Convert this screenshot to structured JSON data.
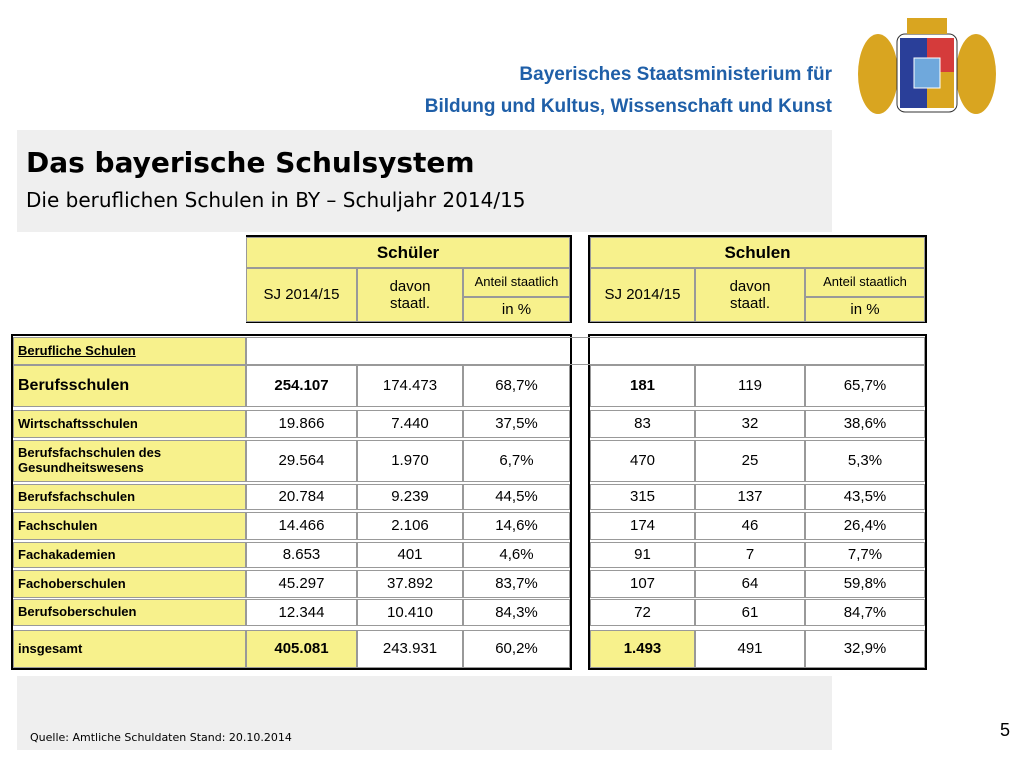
{
  "header": {
    "ministry_line1": "Bayerisches Staatsministerium für",
    "ministry_line2": "Bildung und Kultus, Wissenschaft und Kunst",
    "title": "Das bayerische Schulsystem",
    "subtitle": "Die beruflichen Schulen in BY – Schuljahr 2014/15"
  },
  "table": {
    "groups": [
      {
        "title": "Schüler",
        "year": "SJ 2014/15",
        "state": "davon staatl.",
        "share": "Anteil staatlich",
        "unit": "in %"
      },
      {
        "title": "Schulen",
        "year": "SJ 2014/15",
        "state": "davon staatl.",
        "share": "Anteil staatlich",
        "unit": "in %"
      }
    ],
    "section": "Berufliche Schulen",
    "rows": [
      [
        "Berufsschulen",
        "254.107",
        "174.473",
        "68,7%",
        "181",
        "119",
        "65,7%"
      ],
      [
        "Wirtschaftsschulen",
        "19.866",
        "7.440",
        "37,5%",
        "83",
        "32",
        "38,6%"
      ],
      [
        "Berufsfachschulen des Gesundheitswesens",
        "29.564",
        "1.970",
        "6,7%",
        "470",
        "25",
        "5,3%"
      ],
      [
        "Berufsfachschulen",
        "20.784",
        "9.239",
        "44,5%",
        "315",
        "137",
        "43,5%"
      ],
      [
        "Fachschulen",
        "14.466",
        "2.106",
        "14,6%",
        "174",
        "46",
        "26,4%"
      ],
      [
        "Fachakademien",
        "8.653",
        "401",
        "4,6%",
        "91",
        "7",
        "7,7%"
      ],
      [
        "Fachoberschulen",
        "45.297",
        "37.892",
        "83,7%",
        "107",
        "64",
        "59,8%"
      ],
      [
        "Berufsoberschulen",
        "12.344",
        "10.410",
        "84,3%",
        "72",
        "61",
        "84,7%"
      ],
      [
        "insgesamt",
        "405.081",
        "243.931",
        "60,2%",
        "1.493",
        "491",
        "32,9%"
      ]
    ]
  },
  "footer": {
    "source": "Quelle: Amtliche Schuldaten Stand: 20.10.2014",
    "page": "5"
  }
}
